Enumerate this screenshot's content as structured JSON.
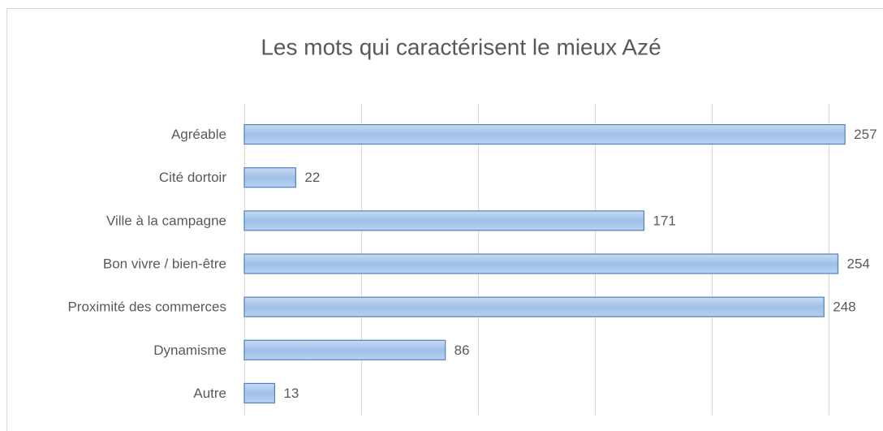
{
  "chart_data": {
    "type": "bar",
    "orientation": "horizontal",
    "title": "Les mots qui caractérisent le mieux Azé",
    "categories": [
      "Agréable",
      "Cité dortoir",
      "Ville à la campagne",
      "Bon vivre / bien-être",
      "Proximité des commerces",
      "Dynamisme",
      "Autre"
    ],
    "values": [
      257,
      22,
      171,
      254,
      248,
      86,
      13
    ],
    "color": "#9dc3e6",
    "xlim": [
      0,
      300
    ],
    "xticks": [
      0,
      50,
      100,
      150,
      200,
      250
    ],
    "grid": true
  }
}
